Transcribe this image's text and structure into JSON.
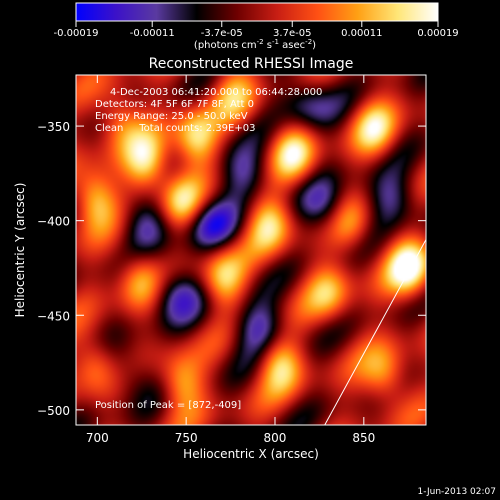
{
  "colorbar": {
    "ticks": [
      "-0.00019",
      "-0.00011",
      "-3.7e-05",
      "3.7e-05",
      "0.00011",
      "0.00019"
    ],
    "tick_values": [
      -0.00019,
      -0.00011,
      -3.7e-05,
      3.7e-05,
      0.00011,
      0.00019
    ],
    "range": [
      -0.00019,
      0.00019
    ],
    "units_main": "(photons cm",
    "units_sup1": "-2",
    "units_mid": " s",
    "units_sup2": "-1",
    "units_end": " asec",
    "units_sup3": "-2",
    "units_close": ")",
    "colors": [
      "#0000ff",
      "#3c12c8",
      "#5a3aa0",
      "#000000",
      "#6e0000",
      "#c81e14",
      "#ff5014",
      "#ffa014",
      "#ffe678",
      "#ffffff"
    ]
  },
  "chart_data": {
    "type": "heatmap",
    "title": "Reconstructed RHESSI Image",
    "xlabel": "Heliocentric X (arcsec)",
    "ylabel": "Heliocentric Y (arcsec)",
    "xlim": [
      688,
      885
    ],
    "ylim": [
      -508,
      -323
    ],
    "xticks": [
      700,
      750,
      800,
      850
    ],
    "yticks": [
      -350,
      -400,
      -450,
      -500
    ],
    "xtick_labels": [
      "700",
      "750",
      "800",
      "850"
    ],
    "ytick_labels": [
      "−350",
      "−400",
      "−450",
      "−500"
    ],
    "info_lines": [
      "4-Dec-2003 06:41:20.000 to 06:44:28.000",
      "Detectors: 4F 5F 6F 7F 8F, Att 0",
      "Energy Range: 25.0 - 50.0 keV",
      "Clean     Total counts: 2.39E+03"
    ],
    "peak_label": "Position of Peak = [872,-409]",
    "peak_position": [
      872,
      -409
    ],
    "limb_line": [
      [
        828,
        -508
      ],
      [
        885,
        -410
      ]
    ]
  },
  "footer": {
    "timestamp": "1-Jun-2013 02:07"
  }
}
